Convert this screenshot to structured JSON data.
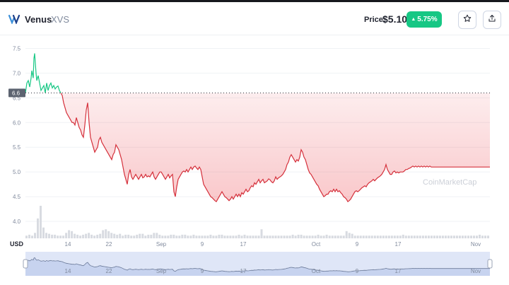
{
  "header": {
    "coin_name": "Venus",
    "coin_symbol": "XVS",
    "price_label": "Price:",
    "price_value": "$5.10",
    "change_arrow": "▲",
    "change_value": "5.75%",
    "colors": {
      "up": "#16c784",
      "down": "#ea3943"
    },
    "icons": {
      "logo": "venus-logo",
      "star": "star-icon",
      "share": "share-icon"
    }
  },
  "chart_data": {
    "type": "line",
    "ylabel": "USD",
    "yticks": [
      "7.5",
      "7.0",
      "6.5",
      "6.0",
      "5.5",
      "5.0",
      "4.5",
      "4.0"
    ],
    "ylim": [
      3.9,
      7.55
    ],
    "reference_value": 6.6,
    "reference_label": "6.6",
    "watermark": "CoinMarketCap",
    "xticks": [
      "14",
      "22",
      "Sep",
      "9",
      "17",
      "Oct",
      "9",
      "17",
      "Nov"
    ],
    "navigator_ticks": [
      "14",
      "22",
      "Sep",
      "9",
      "17",
      "Oct",
      "9",
      "17",
      "Nov"
    ],
    "grid": true,
    "series": [
      {
        "x": [
          0,
          2,
          4,
          6,
          8,
          9,
          11,
          12,
          13,
          14,
          15,
          16,
          18,
          20,
          22,
          24,
          26,
          28,
          30,
          32,
          34,
          36,
          38,
          40,
          42,
          44,
          46,
          48,
          50,
          52,
          54,
          56,
          58,
          60,
          62,
          64,
          66,
          68,
          70,
          72,
          74,
          76,
          78,
          80,
          82,
          84,
          86,
          88,
          90,
          92,
          94,
          96,
          98,
          100,
          102,
          104,
          106,
          108,
          110,
          112,
          114,
          116,
          118,
          120,
          122,
          124,
          126,
          128,
          130,
          132,
          134,
          136,
          138,
          140,
          142,
          144,
          146,
          148,
          150,
          152,
          154,
          156,
          158,
          160,
          162,
          164,
          166,
          168,
          170,
          172,
          174,
          176,
          178,
          180,
          182,
          184,
          186,
          188,
          190,
          192,
          194,
          196,
          198,
          200,
          202,
          204,
          206,
          208,
          210,
          212,
          214,
          216,
          218,
          220,
          222,
          224,
          226,
          228,
          230,
          232,
          234,
          236,
          238,
          240,
          242,
          244,
          246,
          248,
          250,
          252,
          254,
          256,
          258,
          260,
          262,
          264,
          266,
          268,
          270,
          272,
          274,
          276,
          278,
          280,
          282,
          284,
          286,
          288,
          290,
          292,
          294,
          296,
          298,
          300,
          302,
          304,
          306,
          308,
          310,
          312,
          314,
          316,
          318,
          320,
          322,
          324,
          326,
          328,
          330,
          332,
          334,
          336,
          338,
          340,
          342,
          344,
          346,
          348,
          350,
          352,
          354,
          356,
          358,
          360,
          362,
          364,
          366,
          368,
          370,
          372,
          374,
          376,
          378,
          380,
          382,
          384,
          386,
          388,
          390,
          392,
          394,
          396,
          398,
          400,
          402,
          404,
          406,
          408,
          410,
          412,
          414,
          416,
          418,
          420,
          422,
          424,
          426,
          428,
          430,
          432,
          434,
          436,
          438,
          440,
          442,
          444,
          446,
          448,
          450,
          452,
          454,
          456,
          458,
          460,
          462,
          464,
          466,
          468,
          470,
          472,
          474,
          476,
          478,
          480,
          482,
          484,
          486,
          488,
          490,
          492,
          494,
          496,
          498,
          500,
          502,
          504,
          506,
          508,
          510,
          512,
          514,
          516,
          518,
          520,
          522,
          524,
          526,
          528,
          530,
          532,
          534,
          536,
          538,
          540,
          542,
          544,
          546,
          548,
          550,
          552,
          554,
          556,
          558,
          560,
          562,
          564,
          566,
          568,
          570,
          572,
          574,
          576,
          578,
          580,
          582,
          584,
          586,
          588,
          590,
          592,
          594,
          596,
          598,
          600,
          602,
          604,
          606,
          608,
          610,
          612,
          614,
          616,
          618,
          620,
          622,
          624,
          626,
          628,
          630,
          632,
          634,
          636,
          638,
          640,
          642,
          644,
          646,
          648,
          650,
          652,
          654,
          656,
          657
        ],
        "y": [
          6.6,
          6.8,
          6.85,
          6.72,
          6.9,
          7.05,
          6.9,
          7.3,
          7.4,
          7.2,
          7.0,
          6.85,
          6.95,
          6.8,
          6.65,
          6.7,
          6.75,
          6.6,
          6.8,
          6.65,
          6.75,
          6.8,
          6.7,
          6.75,
          6.68,
          6.72,
          6.74,
          6.65,
          6.6,
          6.55,
          6.4,
          6.3,
          6.2,
          6.15,
          6.1,
          6.05,
          6.0,
          6.0,
          5.95,
          6.1,
          6.0,
          5.9,
          5.85,
          5.75,
          5.7,
          5.95,
          6.25,
          6.4,
          6.0,
          5.7,
          5.6,
          5.5,
          5.4,
          5.45,
          5.5,
          5.65,
          5.7,
          5.6,
          5.55,
          5.5,
          5.45,
          5.4,
          5.35,
          5.3,
          5.25,
          5.35,
          5.4,
          5.55,
          5.5,
          5.45,
          5.35,
          5.25,
          5.1,
          4.95,
          4.85,
          4.75,
          4.95,
          5.05,
          4.9,
          4.85,
          4.9,
          4.95,
          4.9,
          4.85,
          4.9,
          4.95,
          4.88,
          4.9,
          4.95,
          4.9,
          4.92,
          4.9,
          4.95,
          5.0,
          4.9,
          4.85,
          4.9,
          4.95,
          5.0,
          5.0,
          4.95,
          4.9,
          4.85,
          4.9,
          4.95,
          4.88,
          4.92,
          4.95,
          4.6,
          4.5,
          4.7,
          4.85,
          4.9,
          4.95,
          5.0,
          5.02,
          5.0,
          5.05,
          5.0,
          5.05,
          5.1,
          5.05,
          5.1,
          5.12,
          5.08,
          5.05,
          5.1,
          5.05,
          4.9,
          4.75,
          4.7,
          4.65,
          4.6,
          4.55,
          4.5,
          4.48,
          4.45,
          4.42,
          4.4,
          4.45,
          4.5,
          4.55,
          4.6,
          4.55,
          4.5,
          4.48,
          4.45,
          4.42,
          4.45,
          4.5,
          4.45,
          4.5,
          4.55,
          4.5,
          4.55,
          4.5,
          4.58,
          4.55,
          4.6,
          4.65,
          4.6,
          4.62,
          4.68,
          4.72,
          4.7,
          4.78,
          4.75,
          4.8,
          4.85,
          4.78,
          4.82,
          4.85,
          4.78,
          4.8,
          4.82,
          4.86,
          4.84,
          4.8,
          4.78,
          4.82,
          4.9,
          4.85,
          4.88,
          4.9,
          4.92,
          4.95,
          5.0,
          5.05,
          5.15,
          5.2,
          5.3,
          5.35,
          5.3,
          5.25,
          5.2,
          5.25,
          5.22,
          5.3,
          5.45,
          5.4,
          5.3,
          5.25,
          5.15,
          5.05,
          4.98,
          4.95,
          4.9,
          4.85,
          4.8,
          4.75,
          4.72,
          4.65,
          4.6,
          4.55,
          4.5,
          4.52,
          4.55,
          4.55,
          4.6,
          4.62,
          4.6,
          4.65,
          4.6,
          4.65,
          4.6,
          4.62,
          4.58,
          4.55,
          4.5,
          4.48,
          4.45,
          4.4,
          4.42,
          4.45,
          4.5,
          4.55,
          4.6,
          4.62,
          4.6,
          4.62,
          4.65,
          4.68,
          4.7,
          4.72,
          4.7,
          4.75,
          4.78,
          4.8,
          4.82,
          4.85,
          4.82,
          4.85,
          4.88,
          4.9,
          4.92,
          4.95,
          5.0,
          5.05,
          5.15,
          5.05,
          5.0,
          4.95,
          4.95,
          5.0,
          5.02,
          4.98,
          5.0,
          4.98,
          5.0,
          5.0,
          5.0,
          5.02,
          5.05,
          5.05,
          5.07,
          5.08,
          5.1,
          5.12,
          5.1,
          5.12,
          5.1,
          5.12,
          5.1,
          5.12,
          5.1,
          5.12,
          5.1,
          5.12,
          5.1,
          5.12,
          5.1,
          5.1,
          5.1,
          5.1,
          5.1,
          5.1,
          5.1,
          5.1,
          5.1,
          5.1,
          5.1,
          5.1,
          5.1,
          5.1,
          5.1,
          5.1,
          5.1,
          5.1,
          5.1,
          5.1,
          5.1,
          5.1,
          5.1,
          5.1,
          5.1,
          5.1,
          5.1,
          5.1,
          5.1,
          5.1,
          5.1,
          5.1,
          5.1,
          5.1,
          5.1,
          5.1,
          5.1,
          5.1,
          5.1,
          5.1,
          5.1,
          5.1,
          5.1
        ]
      }
    ],
    "volume": [
      3,
      4,
      3,
      6,
      22,
      36,
      12,
      6,
      5,
      4,
      4,
      3,
      3,
      3,
      6,
      9,
      8,
      5,
      4,
      3,
      4,
      5,
      6,
      4,
      3,
      4,
      5,
      9,
      10,
      8,
      6,
      5,
      4,
      5,
      3,
      4,
      4,
      3,
      3,
      4,
      5,
      5,
      3,
      4,
      4,
      6,
      6,
      4,
      3,
      3,
      3,
      4,
      4,
      3,
      3,
      4,
      4,
      3,
      3,
      4,
      3,
      3,
      3,
      3,
      3,
      4,
      3,
      3,
      4,
      4,
      3,
      3,
      3,
      3,
      3,
      4,
      3,
      4,
      3,
      3,
      3,
      3,
      3,
      10,
      3,
      3,
      3,
      3,
      3,
      3,
      3,
      3,
      3,
      3,
      4,
      3,
      4,
      4,
      3,
      3,
      3,
      3,
      3,
      4,
      3,
      3,
      4,
      3,
      3,
      3,
      3,
      3,
      3,
      8,
      6,
      5,
      3,
      3,
      3,
      3,
      3,
      3,
      3,
      3,
      3,
      3,
      3,
      3,
      3,
      3,
      3,
      3,
      3,
      4,
      3,
      3,
      3,
      3,
      3,
      3,
      3,
      3,
      3,
      3,
      3,
      3,
      3,
      3,
      3,
      3,
      3,
      3,
      3,
      3,
      3,
      3,
      3,
      3,
      3,
      3,
      4,
      3,
      3,
      3
    ]
  }
}
